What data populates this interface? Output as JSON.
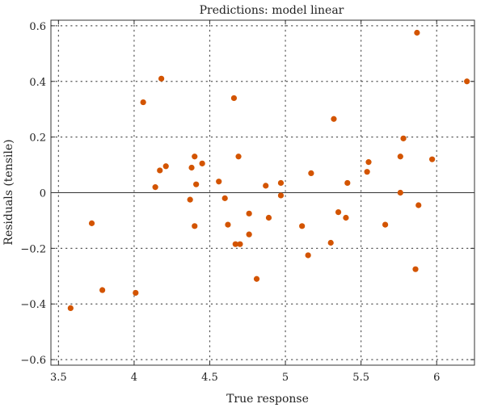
{
  "chart_data": {
    "type": "scatter",
    "title": "Predictions: model linear",
    "xlabel": "True response",
    "ylabel": "Residuals (tensile)",
    "xlim": [
      3.45,
      6.25
    ],
    "ylim": [
      -0.62,
      0.62
    ],
    "xticks": [
      3.5,
      4,
      4.5,
      5,
      5.5,
      6
    ],
    "yticks": [
      -0.6,
      -0.4,
      -0.2,
      0,
      0.2,
      0.4,
      0.6
    ],
    "xtick_labels": [
      "3.5",
      "4",
      "4.5",
      "5",
      "5.5",
      "6"
    ],
    "ytick_labels": [
      "−0.6",
      "−0.4",
      "−0.2",
      "0",
      "0.2",
      "0.4",
      "0.6"
    ],
    "grid": true,
    "zero_line": true,
    "point_color": "#d35400",
    "points": [
      {
        "x": 3.58,
        "y": -0.415
      },
      {
        "x": 3.72,
        "y": -0.11
      },
      {
        "x": 3.79,
        "y": -0.35
      },
      {
        "x": 4.01,
        "y": -0.36
      },
      {
        "x": 4.06,
        "y": 0.325
      },
      {
        "x": 4.14,
        "y": 0.02
      },
      {
        "x": 4.17,
        "y": 0.08
      },
      {
        "x": 4.18,
        "y": 0.41
      },
      {
        "x": 4.21,
        "y": 0.095
      },
      {
        "x": 4.37,
        "y": -0.025
      },
      {
        "x": 4.38,
        "y": 0.09
      },
      {
        "x": 4.4,
        "y": 0.13
      },
      {
        "x": 4.4,
        "y": -0.12
      },
      {
        "x": 4.41,
        "y": 0.03
      },
      {
        "x": 4.45,
        "y": 0.105
      },
      {
        "x": 4.56,
        "y": 0.04
      },
      {
        "x": 4.6,
        "y": -0.02
      },
      {
        "x": 4.62,
        "y": -0.115
      },
      {
        "x": 4.66,
        "y": 0.34
      },
      {
        "x": 4.67,
        "y": -0.185
      },
      {
        "x": 4.69,
        "y": 0.13
      },
      {
        "x": 4.7,
        "y": -0.185
      },
      {
        "x": 4.76,
        "y": -0.075
      },
      {
        "x": 4.76,
        "y": -0.15
      },
      {
        "x": 4.81,
        "y": -0.31
      },
      {
        "x": 4.87,
        "y": 0.025
      },
      {
        "x": 4.89,
        "y": -0.09
      },
      {
        "x": 4.97,
        "y": 0.035
      },
      {
        "x": 4.97,
        "y": -0.01
      },
      {
        "x": 5.11,
        "y": -0.12
      },
      {
        "x": 5.15,
        "y": -0.225
      },
      {
        "x": 5.17,
        "y": 0.07
      },
      {
        "x": 5.3,
        "y": -0.18
      },
      {
        "x": 5.32,
        "y": 0.265
      },
      {
        "x": 5.35,
        "y": -0.07
      },
      {
        "x": 5.4,
        "y": -0.09
      },
      {
        "x": 5.41,
        "y": 0.035
      },
      {
        "x": 5.54,
        "y": 0.075
      },
      {
        "x": 5.55,
        "y": 0.11
      },
      {
        "x": 5.66,
        "y": -0.115
      },
      {
        "x": 5.76,
        "y": 0.13
      },
      {
        "x": 5.76,
        "y": 0.0
      },
      {
        "x": 5.78,
        "y": 0.195
      },
      {
        "x": 5.86,
        "y": -0.275
      },
      {
        "x": 5.87,
        "y": 0.575
      },
      {
        "x": 5.88,
        "y": -0.045
      },
      {
        "x": 5.97,
        "y": 0.12
      },
      {
        "x": 6.2,
        "y": 0.4
      }
    ]
  }
}
